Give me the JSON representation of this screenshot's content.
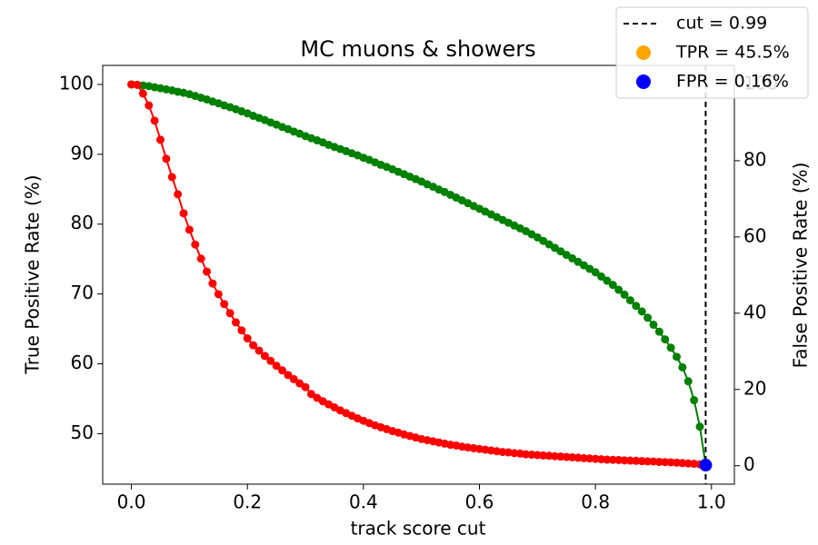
{
  "chart_data": {
    "type": "line",
    "title": "MC muons & showers",
    "xlabel": "track score cut",
    "ylabel": "True Positive Rate (%)",
    "y2label": "False Positive Rate (%)",
    "ylabel_color": "green",
    "y2label_color": "red",
    "xlim": [
      -0.0495,
      1.0395
    ],
    "ylim": [
      42.775,
      102.725
    ],
    "y2lim": [
      -4.83,
      104.99
    ],
    "xticks": [
      {
        "value": 0,
        "label": "0.0"
      },
      0.2,
      0.4,
      0.6,
      0.8,
      {
        "value": 1,
        "label": "1.0"
      }
    ],
    "yticks": [
      50,
      60,
      70,
      80,
      90,
      100
    ],
    "y2ticks": [
      0,
      20,
      40,
      60,
      80,
      100
    ],
    "grid": false,
    "legend": "upper right",
    "x": [
      0,
      0.01,
      0.02,
      0.03,
      0.04,
      0.05,
      0.06,
      0.07,
      0.08,
      0.09,
      0.1,
      0.11,
      0.12,
      0.13,
      0.14,
      0.15,
      0.16,
      0.17,
      0.18,
      0.19,
      0.2,
      0.21,
      0.22,
      0.23,
      0.24,
      0.25,
      0.26,
      0.27,
      0.28,
      0.29,
      0.3,
      0.31,
      0.32,
      0.33,
      0.34,
      0.35,
      0.36,
      0.37,
      0.38,
      0.39,
      0.4,
      0.41,
      0.42,
      0.43,
      0.44,
      0.45,
      0.46,
      0.47,
      0.48,
      0.49,
      0.5,
      0.51,
      0.52,
      0.53,
      0.54,
      0.55,
      0.56,
      0.57,
      0.58,
      0.59,
      0.6,
      0.61,
      0.62,
      0.63,
      0.64,
      0.65,
      0.66,
      0.67,
      0.68,
      0.69,
      0.7,
      0.71,
      0.72,
      0.73,
      0.74,
      0.75,
      0.76,
      0.77,
      0.78,
      0.79,
      0.8,
      0.81,
      0.82,
      0.83,
      0.84,
      0.85,
      0.86,
      0.87,
      0.88,
      0.89,
      0.9,
      0.91,
      0.92,
      0.93,
      0.94,
      0.95,
      0.96,
      0.97,
      0.98,
      0.99
    ],
    "series": [
      {
        "color": "green",
        "axis": "y",
        "values": [
          100,
          99.95,
          99.85,
          99.75,
          99.6,
          99.45,
          99.3,
          99.15,
          98.95,
          98.8,
          98.6,
          98.35,
          98.1,
          97.85,
          97.55,
          97.3,
          97.0,
          96.75,
          96.45,
          96.15,
          95.85,
          95.5,
          95.2,
          94.9,
          94.55,
          94.25,
          93.9,
          93.6,
          93.25,
          92.95,
          92.6,
          92.3,
          92.0,
          91.7,
          91.35,
          91.05,
          90.75,
          90.45,
          90.15,
          89.85,
          89.5,
          89.2,
          88.85,
          88.5,
          88.2,
          87.85,
          87.5,
          87.15,
          86.8,
          86.45,
          86.1,
          85.7,
          85.35,
          84.95,
          84.6,
          84.2,
          83.8,
          83.4,
          83.0,
          82.6,
          82.2,
          81.8,
          81.4,
          81.0,
          80.6,
          80.2,
          79.8,
          79.4,
          79.0,
          78.55,
          78.1,
          77.6,
          77.1,
          76.6,
          76.1,
          75.6,
          75.1,
          74.6,
          74.1,
          73.6,
          73.1,
          72.5,
          71.9,
          71.3,
          70.6,
          69.9,
          69.1,
          68.3,
          67.5,
          66.6,
          65.6,
          64.6,
          63.5,
          62.3,
          61.0,
          59.5,
          57.5,
          54.8,
          51.0,
          45.5
        ]
      },
      {
        "color": "red",
        "axis": "y2",
        "values": [
          100,
          99.9,
          97.6,
          94.5,
          90.5,
          85.5,
          80.5,
          75.7,
          71.2,
          66.2,
          61.9,
          58.0,
          54.3,
          50.9,
          47.8,
          45.0,
          42.4,
          40.0,
          37.6,
          35.5,
          33.4,
          31.6,
          30.2,
          28.8,
          27.5,
          26.2,
          25.0,
          23.8,
          22.7,
          21.6,
          20.6,
          18.8,
          17.8,
          16.9,
          16.1,
          15.3,
          14.5,
          13.8,
          13.1,
          12.4,
          11.8,
          11.2,
          10.6,
          10.1,
          9.6,
          9.1,
          8.7,
          8.2,
          7.8,
          7.4,
          7.0,
          6.7,
          6.4,
          6.1,
          5.8,
          5.5,
          5.3,
          5.0,
          4.8,
          4.6,
          4.4,
          4.2,
          4.0,
          3.8,
          3.6,
          3.5,
          3.3,
          3.2,
          3.0,
          2.9,
          2.8,
          2.7,
          2.6,
          2.5,
          2.4,
          2.3,
          2.2,
          2.1,
          2.0,
          1.9,
          1.8,
          1.7,
          1.6,
          1.55,
          1.5,
          1.4,
          1.35,
          1.3,
          1.2,
          1.15,
          1.1,
          1.0,
          0.95,
          0.9,
          0.8,
          0.7,
          0.6,
          0.5,
          0.35,
          0.16
        ]
      }
    ],
    "cut": {
      "name": "cut = 0.99",
      "x": 0.99,
      "color": "black"
    },
    "markers": [
      {
        "name": "TPR = 45.5%",
        "color": "orange",
        "x": 0.99,
        "y": 45.5,
        "axis": "y"
      },
      {
        "name": "FPR = 0.16%",
        "color": "blue",
        "x": 0.99,
        "y": 0.16,
        "axis": "y2"
      }
    ]
  }
}
